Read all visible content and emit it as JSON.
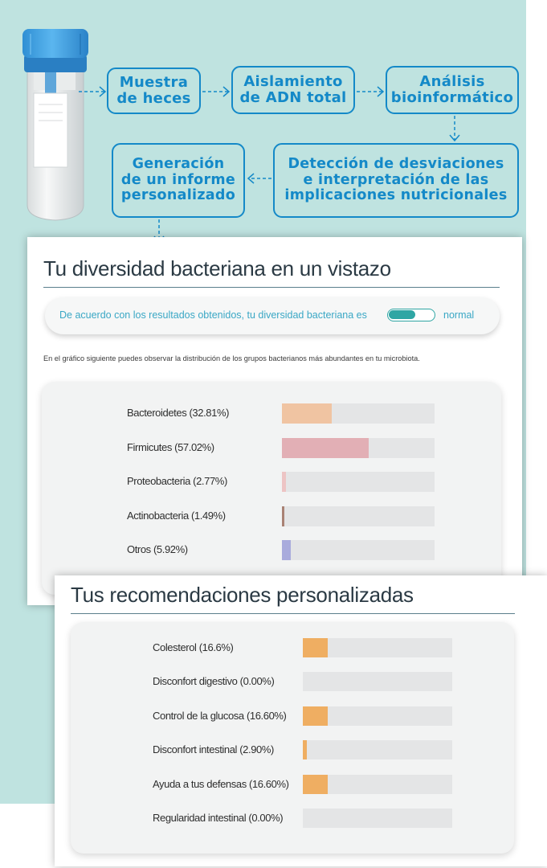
{
  "colors": {
    "background": "#bfe3e0",
    "flow_accent": "#1489c8",
    "toggle": "#2fa6a4",
    "bar_track": "#e4e5e6"
  },
  "flowchart": {
    "steps": [
      {
        "id": "sample",
        "label": "Muestra\nde heces"
      },
      {
        "id": "dna",
        "label": "Aislamiento\nde ADN total"
      },
      {
        "id": "bioinfo",
        "label": "Análisis\nbioinformático"
      },
      {
        "id": "detection",
        "label": "Detección de desviaciones\ne interpretación de las\nimplicaciones nutricionales"
      },
      {
        "id": "report",
        "label": "Generación\nde un informe\npersonalizado"
      }
    ]
  },
  "tube": {
    "icon": "sample-tube-icon"
  },
  "diversity": {
    "title": "Tu diversidad bacteriana en un vistazo",
    "summary_text": "De acuerdo con los resultados obtenidos, tu diversidad bacteriana es",
    "status": "normal",
    "toggle_level": 0.55,
    "note": "En el gráfico siguiente puedes observar la distribución de los grupos bacterianos más abundantes en tu microbiota."
  },
  "chart_data": [
    {
      "type": "bar",
      "title": "Tu diversidad bacteriana en un vistazo",
      "orientation": "horizontal",
      "ylim": [
        0,
        100
      ],
      "categories": [
        "Bacteroidetes (32.81%)",
        "Firmicutes (57.02%)",
        "Proteobacteria (2.77%)",
        "Actinobacteria (1.49%)",
        "Otros (5.92%)"
      ],
      "values": [
        32.81,
        57.02,
        2.77,
        1.49,
        5.92
      ],
      "colors": [
        "#f0c4a2",
        "#e2afb5",
        "#edc4c4",
        "#a98274",
        "#a9abdc"
      ]
    },
    {
      "type": "bar",
      "title": "Tus recomendaciones personalizadas",
      "orientation": "horizontal",
      "ylim": [
        0,
        100
      ],
      "categories": [
        "Colesterol (16.6%)",
        "Disconfort digestivo (0.00%)",
        "Control de la glucosa (16.60%)",
        "Disconfort intestinal (2.90%)",
        "Ayuda a tus defensas (16.60%)",
        "Regularidad intestinal (0.00%)"
      ],
      "values": [
        16.6,
        0.0,
        16.6,
        2.9,
        16.6,
        0.0
      ],
      "colors": [
        "#efae62",
        "#efae62",
        "#efae62",
        "#efae62",
        "#efae62",
        "#efae62"
      ]
    }
  ],
  "recommendations": {
    "title": "Tus recomendaciones personalizadas"
  }
}
